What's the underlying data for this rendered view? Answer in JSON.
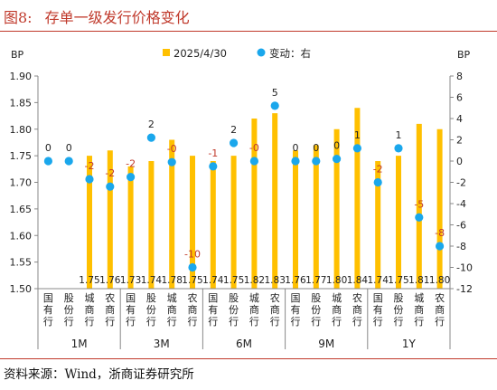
{
  "figure": {
    "label": "图8:",
    "title": "存单一级发行价格变化",
    "source": "资料来源：Wind，浙商证券研究所"
  },
  "colors": {
    "bar": "#FFC000",
    "dot": "#1AA7EC",
    "title": "#C0392B"
  },
  "chart_data": {
    "type": "bar",
    "left_axis": {
      "unit": "BP",
      "min": 1.5,
      "max": 1.9,
      "ticks": [
        "1.50",
        "1.55",
        "1.60",
        "1.65",
        "1.70",
        "1.75",
        "1.80",
        "1.85",
        "1.90"
      ]
    },
    "right_axis": {
      "unit": "BP",
      "min": -12,
      "max": 8,
      "ticks": [
        "-12",
        "-10",
        "-8",
        "-6",
        "-4",
        "-2",
        "0",
        "2",
        "4",
        "6",
        "8"
      ]
    },
    "legend": {
      "position": "top",
      "bar_label": "2025/4/30",
      "dot_label": "变动：右"
    },
    "groups": [
      "1M",
      "3M",
      "6M",
      "9M",
      "1Y"
    ],
    "categories": [
      "国有行",
      "股份行",
      "城商行",
      "农商行",
      "国有行",
      "股份行",
      "城商行",
      "农商行",
      "国有行",
      "股份行",
      "城商行",
      "农商行",
      "国有行",
      "股份行",
      "城商行",
      "农商行",
      "国有行",
      "股份行",
      "城商行",
      "农商行"
    ],
    "series": [
      {
        "name": "2025/4/30",
        "kind": "bar",
        "values": [
          1.5,
          1.5,
          1.75,
          1.76,
          1.73,
          1.74,
          1.78,
          1.75,
          1.74,
          1.75,
          1.82,
          1.83,
          1.76,
          1.77,
          1.8,
          1.84,
          1.74,
          1.75,
          1.81,
          1.8
        ],
        "labels": [
          "",
          "",
          "1.75",
          "1.76",
          "1.73",
          "1.74",
          "1.78",
          "1.75",
          "1.74",
          "1.75",
          "1.82",
          "1.83",
          "1.76",
          "1.77",
          "1.80",
          "1.84",
          "1.74",
          "1.75",
          "1.81",
          "1.80"
        ]
      },
      {
        "name": "变动：右",
        "kind": "scatter",
        "axis": "right",
        "values": [
          0,
          0,
          -1.7,
          -2.4,
          -1.5,
          2.2,
          -0.1,
          -10,
          -0.5,
          1.7,
          0,
          5.2,
          0,
          0,
          0.2,
          1.2,
          -2,
          1.2,
          -5.3,
          -8
        ],
        "labels": [
          "0",
          "0",
          "-2",
          "-2",
          "-2",
          "2",
          "-0",
          "-10",
          "-1",
          "2",
          "-0",
          "5",
          "0",
          "0",
          "0",
          "1",
          "-2",
          "1",
          "-5",
          "-8"
        ]
      }
    ]
  }
}
